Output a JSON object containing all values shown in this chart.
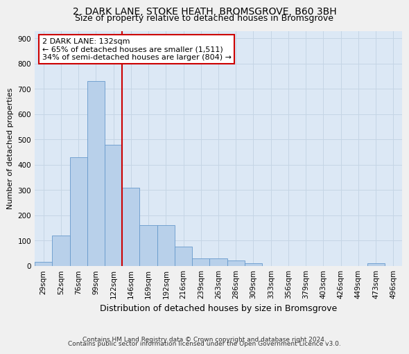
{
  "title": "2, DARK LANE, STOKE HEATH, BROMSGROVE, B60 3BH",
  "subtitle": "Size of property relative to detached houses in Bromsgrove",
  "xlabel": "Distribution of detached houses by size in Bromsgrove",
  "ylabel": "Number of detached properties",
  "bins": [
    "29sqm",
    "52sqm",
    "76sqm",
    "99sqm",
    "122sqm",
    "146sqm",
    "169sqm",
    "192sqm",
    "216sqm",
    "239sqm",
    "263sqm",
    "286sqm",
    "309sqm",
    "333sqm",
    "356sqm",
    "379sqm",
    "403sqm",
    "426sqm",
    "449sqm",
    "473sqm",
    "496sqm"
  ],
  "values": [
    15,
    120,
    430,
    730,
    480,
    310,
    160,
    160,
    75,
    30,
    30,
    20,
    10,
    0,
    0,
    0,
    0,
    0,
    0,
    10,
    0
  ],
  "bar_color": "#b8d0ea",
  "bar_edge_color": "#6699cc",
  "grid_color": "#c5d5e5",
  "background_color": "#dce8f5",
  "red_line_x": 4.5,
  "annotation_text": "2 DARK LANE: 132sqm\n← 65% of detached houses are smaller (1,511)\n34% of semi-detached houses are larger (804) →",
  "annotation_box_facecolor": "#ffffff",
  "annotation_box_edgecolor": "#cc0000",
  "footnote_line1": "Contains HM Land Registry data © Crown copyright and database right 2024.",
  "footnote_line2": "Contains public sector information licensed under the Open Government Licence v3.0.",
  "ylim": [
    0,
    930
  ],
  "yticks": [
    0,
    100,
    200,
    300,
    400,
    500,
    600,
    700,
    800,
    900
  ],
  "title_fontsize": 10,
  "subtitle_fontsize": 9,
  "ylabel_fontsize": 8,
  "xlabel_fontsize": 9,
  "tick_fontsize": 7.5,
  "annot_fontsize": 8
}
